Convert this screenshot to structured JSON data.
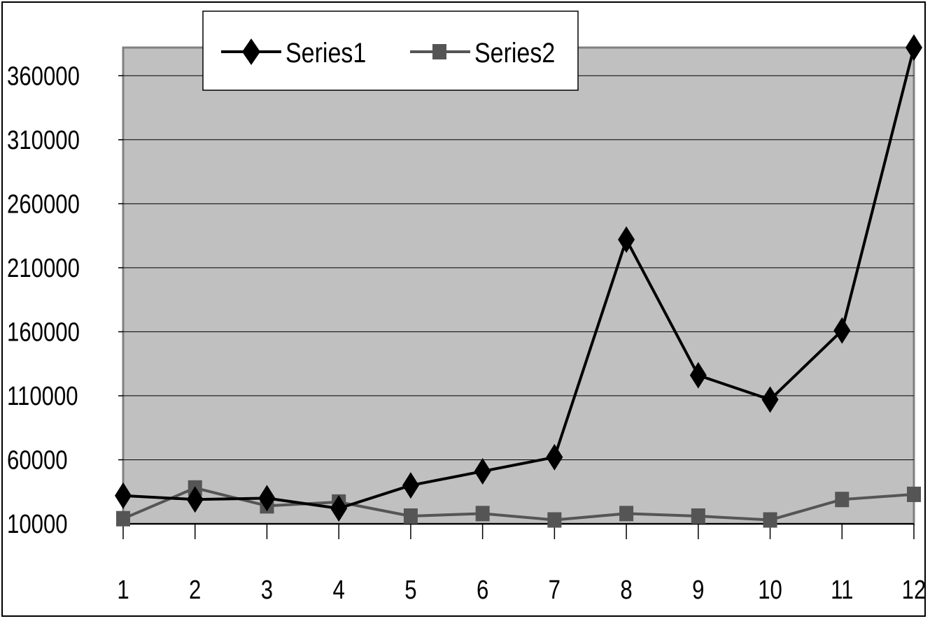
{
  "chart_data": {
    "type": "line",
    "title": "",
    "xlabel": "",
    "ylabel": "",
    "categories": [
      "1",
      "2",
      "3",
      "4",
      "5",
      "6",
      "7",
      "8",
      "9",
      "10",
      "11",
      "12"
    ],
    "y_ticks": [
      "10000",
      "60000",
      "110000",
      "160000",
      "210000",
      "260000",
      "310000",
      "360000"
    ],
    "ylim": [
      10000,
      382000
    ],
    "grid": true,
    "legend_position": "top",
    "plot_background": "#c0c0c0",
    "series": [
      {
        "name": "Series1",
        "color": "#000000",
        "marker": "diamond",
        "values": [
          32000,
          29000,
          30000,
          22000,
          40000,
          51000,
          62000,
          232000,
          126000,
          107000,
          161000,
          382000
        ]
      },
      {
        "name": "Series2",
        "color": "#555555",
        "marker": "square",
        "values": [
          14000,
          38000,
          24000,
          27000,
          16000,
          18000,
          13000,
          18000,
          16000,
          13000,
          29000,
          33000
        ]
      }
    ]
  }
}
